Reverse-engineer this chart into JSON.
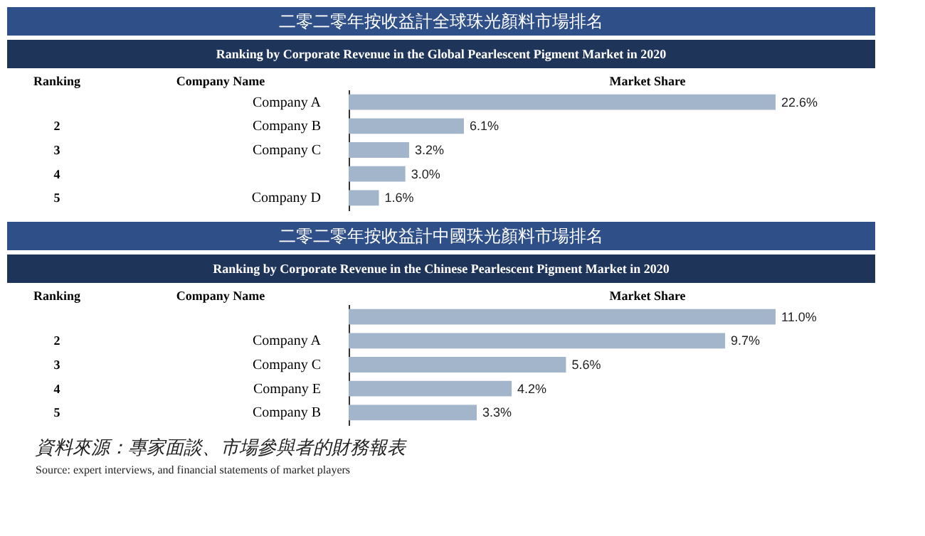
{
  "chart_data": [
    {
      "type": "bar",
      "orientation": "horizontal",
      "title": "二零二零年按收益計全球珠光顏料市場排名",
      "subtitle": "Ranking by Corporate Revenue in the Global Pearlescent Pigment Market in 2020",
      "categories": [
        "Company A",
        "Company B",
        "Company C",
        null,
        "Company D"
      ],
      "values": [
        22.6,
        6.1,
        3.2,
        3.0,
        1.6
      ],
      "value_labels": [
        "22.6%",
        "6.1%",
        "3.2%",
        "3.0%",
        "1.6%"
      ],
      "color": "#a3b5ca",
      "annotations": [
        "Ranking",
        "Company Name",
        "Market Share",
        "2",
        "3",
        "4",
        "5"
      ]
    },
    {
      "type": "bar",
      "orientation": "horizontal",
      "title": "二零二零年按收益計中國珠光顏料市場排名",
      "subtitle": "Ranking by Corporate Revenue in the Chinese Pearlescent Pigment Market in 2020",
      "categories": [
        null,
        "Company A",
        "Company C",
        "Company E",
        "Company B"
      ],
      "values": [
        11.0,
        9.7,
        5.6,
        4.2,
        3.3
      ],
      "value_labels": [
        "11.0%",
        "9.7%",
        "5.6%",
        "4.2%",
        "3.3%"
      ],
      "color": "#a3b5ca",
      "annotations": [
        "Ranking",
        "Company Name",
        "Market Share",
        "2",
        "3",
        "4",
        "5",
        "資料來源：專家面談、市場參與者的財務報表",
        "Source: expert interviews, and financial statements of market players"
      ]
    }
  ]
}
